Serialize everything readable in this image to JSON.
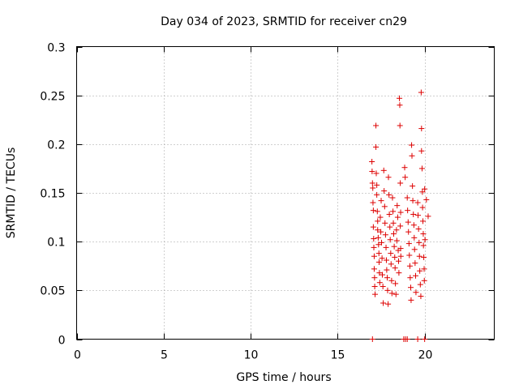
{
  "chart_data": {
    "type": "scatter",
    "title": "Day 034 of 2023, SRMTID for receiver cn29",
    "xlabel": "GPS time / hours",
    "ylabel": "SRMTID / TECUs",
    "xlim": [
      0,
      24
    ],
    "ylim": [
      0,
      0.3
    ],
    "x_ticks": [
      "0",
      "5",
      "10",
      "15",
      "20"
    ],
    "x_tick_values": [
      0,
      5,
      10,
      15,
      20
    ],
    "y_ticks": [
      "0",
      "0.05",
      "0.1",
      "0.15",
      "0.2",
      "0.25",
      "0.3"
    ],
    "y_tick_values": [
      0,
      0.05,
      0.1,
      0.15,
      0.2,
      0.25,
      0.3
    ],
    "grid": true,
    "series": [
      {
        "name": "SRMTID",
        "color": "#dd0000",
        "marker": "plus",
        "points": [
          [
            16.97,
            0.182
          ],
          [
            16.98,
            0.172
          ],
          [
            17.0,
            0.16
          ],
          [
            17.02,
            0.155
          ],
          [
            17.03,
            0.14
          ],
          [
            17.05,
            0.132
          ],
          [
            17.05,
            0.115
          ],
          [
            17.07,
            0.103
          ],
          [
            17.08,
            0.094
          ],
          [
            17.1,
            0.085
          ],
          [
            17.1,
            0.072
          ],
          [
            17.12,
            0.063
          ],
          [
            17.13,
            0.054
          ],
          [
            17.15,
            0.046
          ],
          [
            17.2,
            0.219
          ],
          [
            17.2,
            0.197
          ],
          [
            17.22,
            0.17
          ],
          [
            17.25,
            0.158
          ],
          [
            17.25,
            0.148
          ],
          [
            17.28,
            0.131
          ],
          [
            17.3,
            0.121
          ],
          [
            17.3,
            0.112
          ],
          [
            17.33,
            0.104
          ],
          [
            17.35,
            0.097
          ],
          [
            17.37,
            0.088
          ],
          [
            17.38,
            0.079
          ],
          [
            17.4,
            0.068
          ],
          [
            17.42,
            0.058
          ],
          [
            17.45,
            0.125
          ],
          [
            17.48,
            0.11
          ],
          [
            17.5,
            0.142
          ],
          [
            17.52,
            0.099
          ],
          [
            17.55,
            0.083
          ],
          [
            17.57,
            0.066
          ],
          [
            17.6,
            0.054
          ],
          [
            17.62,
            0.037
          ],
          [
            17.65,
            0.173
          ],
          [
            17.67,
            0.152
          ],
          [
            17.7,
            0.136
          ],
          [
            17.72,
            0.119
          ],
          [
            17.75,
            0.107
          ],
          [
            17.78,
            0.094
          ],
          [
            17.8,
            0.081
          ],
          [
            17.82,
            0.071
          ],
          [
            17.85,
            0.063
          ],
          [
            17.87,
            0.05
          ],
          [
            17.9,
            0.036
          ],
          [
            17.92,
            0.166
          ],
          [
            17.95,
            0.148
          ],
          [
            17.97,
            0.128
          ],
          [
            18.0,
            0.115
          ],
          [
            18.02,
            0.102
          ],
          [
            18.05,
            0.088
          ],
          [
            18.07,
            0.077
          ],
          [
            18.1,
            0.06
          ],
          [
            18.12,
            0.047
          ],
          [
            18.15,
            0.145
          ],
          [
            18.18,
            0.131
          ],
          [
            18.2,
            0.119
          ],
          [
            18.22,
            0.108
          ],
          [
            18.25,
            0.095
          ],
          [
            18.28,
            0.084
          ],
          [
            18.3,
            0.073
          ],
          [
            18.32,
            0.057
          ],
          [
            18.35,
            0.046
          ],
          [
            18.38,
            0.112
          ],
          [
            18.4,
            0.101
          ],
          [
            18.42,
            0.137
          ],
          [
            18.45,
            0.125
          ],
          [
            18.48,
            0.091
          ],
          [
            18.5,
            0.08
          ],
          [
            18.52,
            0.068
          ],
          [
            18.55,
            0.247
          ],
          [
            18.57,
            0.24
          ],
          [
            18.58,
            0.219
          ],
          [
            18.6,
            0.16
          ],
          [
            18.6,
            0.116
          ],
          [
            18.62,
            0.13
          ],
          [
            18.62,
            0.093
          ],
          [
            18.63,
            0.085
          ],
          [
            18.85,
            0.176
          ],
          [
            18.88,
            0.166
          ],
          [
            19.0,
            0.145
          ],
          [
            19.02,
            0.132
          ],
          [
            19.05,
            0.12
          ],
          [
            19.07,
            0.11
          ],
          [
            19.1,
            0.098
          ],
          [
            19.12,
            0.086
          ],
          [
            19.15,
            0.075
          ],
          [
            19.17,
            0.063
          ],
          [
            19.2,
            0.053
          ],
          [
            19.22,
            0.04
          ],
          [
            19.25,
            0.199
          ],
          [
            19.27,
            0.188
          ],
          [
            19.3,
            0.157
          ],
          [
            19.32,
            0.142
          ],
          [
            19.35,
            0.128
          ],
          [
            19.38,
            0.117
          ],
          [
            19.4,
            0.104
          ],
          [
            19.42,
            0.092
          ],
          [
            19.45,
            0.078
          ],
          [
            19.48,
            0.065
          ],
          [
            19.5,
            0.048
          ],
          [
            19.6,
            0.14
          ],
          [
            19.62,
            0.127
          ],
          [
            19.65,
            0.113
          ],
          [
            19.68,
            0.099
          ],
          [
            19.7,
            0.085
          ],
          [
            19.72,
            0.07
          ],
          [
            19.75,
            0.056
          ],
          [
            19.78,
            0.044
          ],
          [
            19.8,
            0.253
          ],
          [
            19.82,
            0.216
          ],
          [
            19.82,
            0.193
          ],
          [
            19.85,
            0.175
          ],
          [
            19.87,
            0.151
          ],
          [
            19.88,
            0.135
          ],
          [
            19.9,
            0.121
          ],
          [
            19.92,
            0.108
          ],
          [
            19.93,
            0.096
          ],
          [
            19.95,
            0.084
          ],
          [
            19.97,
            0.072
          ],
          [
            19.98,
            0.06
          ],
          [
            20.0,
            0.154
          ],
          [
            20.02,
            0.102
          ],
          [
            20.1,
            0.143
          ],
          [
            20.2,
            0.126
          ],
          [
            17.0,
            0.0
          ],
          [
            18.8,
            0.0
          ],
          [
            18.9,
            0.0
          ],
          [
            19.0,
            0.0
          ],
          [
            19.6,
            0.0
          ],
          [
            20.0,
            0.0
          ]
        ]
      }
    ]
  }
}
